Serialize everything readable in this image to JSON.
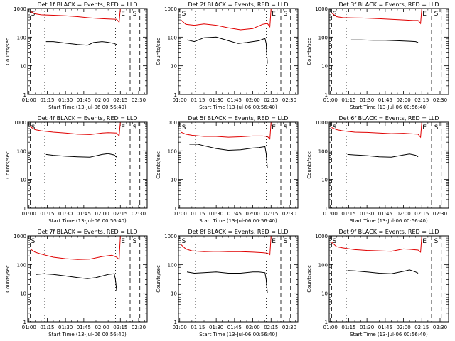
{
  "colors": {
    "events": "#000000",
    "lld": "#e00000",
    "axes": "#000000",
    "background": "#ffffff"
  },
  "chart_data": [
    {
      "type": "line",
      "title": "Det 1f BLACK = Events, RED = LLD",
      "xlabel": "Start Time (13-Jul-06 00:56:40)",
      "ylabel": "Counts/sec",
      "yscale": "log",
      "ylim": [
        1,
        1000
      ],
      "xlim": [
        "00:59",
        "02:37"
      ],
      "xticks": [
        "01:00",
        "01:15",
        "01:30",
        "01:45",
        "02:00",
        "02:15",
        "02:30"
      ],
      "yticks": [
        "1",
        "10",
        "100",
        "1000"
      ],
      "markers": [
        "E",
        "S"
      ],
      "series": [
        {
          "color": "#e00000",
          "x": [
            "01:01",
            "01:05",
            "01:10",
            "01:20",
            "01:30",
            "01:40",
            "01:50",
            "02:00",
            "02:05",
            "02:12",
            "02:14",
            "02:15",
            "02:16"
          ],
          "y": [
            800,
            650,
            600,
            580,
            560,
            520,
            470,
            440,
            430,
            420,
            330,
            1000,
            1100
          ]
        },
        {
          "color": "#000000",
          "x": [
            "01:14",
            "01:20",
            "01:30",
            "01:40",
            "01:48",
            "01:53",
            "02:00",
            "02:05",
            "02:10",
            "02:12"
          ],
          "y": [
            70,
            70,
            62,
            55,
            52,
            65,
            70,
            66,
            60,
            55
          ]
        }
      ]
    },
    {
      "type": "line",
      "title": "Det 2f BLACK = Events, RED = LLD",
      "xlabel": "Start Time (13-Jul-06 00:56:40)",
      "ylabel": "Counts/sec",
      "yscale": "log",
      "ylim": [
        1,
        1000
      ],
      "xlim": [
        "00:59",
        "02:37"
      ],
      "xticks": [
        "01:00",
        "01:15",
        "01:30",
        "01:45",
        "02:00",
        "02:15",
        "02:30"
      ],
      "yticks": [
        "1",
        "10",
        "100",
        "1000"
      ],
      "markers": [
        "E",
        "S"
      ],
      "series": [
        {
          "color": "#e00000",
          "x": [
            "01:01",
            "01:05",
            "01:12",
            "01:20",
            "01:30",
            "01:40",
            "01:50",
            "02:00",
            "02:08",
            "02:12",
            "02:14",
            "02:15",
            "02:16"
          ],
          "y": [
            400,
            280,
            260,
            290,
            260,
            210,
            180,
            200,
            280,
            300,
            230,
            1000,
            1100
          ]
        },
        {
          "color": "#000000",
          "x": [
            "01:06",
            "01:12",
            "01:20",
            "01:30",
            "01:40",
            "01:48",
            "01:55",
            "02:05",
            "02:10",
            "02:11",
            "02:12"
          ],
          "y": [
            80,
            70,
            95,
            100,
            75,
            60,
            65,
            75,
            90,
            60,
            12
          ]
        }
      ]
    },
    {
      "type": "line",
      "title": "Det 3f BLACK = Events, RED = LLD",
      "xlabel": "Start Time (13-Jul-06 00:56:40)",
      "ylabel": "Counts/sec",
      "yscale": "log",
      "ylim": [
        1,
        1000
      ],
      "xlim": [
        "00:59",
        "02:37"
      ],
      "xticks": [
        "01:00",
        "01:15",
        "01:30",
        "01:45",
        "02:00",
        "02:15",
        "02:30"
      ],
      "yticks": [
        "1",
        "10",
        "100",
        "1000"
      ],
      "markers": [
        "E",
        "S"
      ],
      "series": [
        {
          "color": "#e00000",
          "x": [
            "01:01",
            "01:05",
            "01:10",
            "01:20",
            "01:30",
            "01:40",
            "01:50",
            "02:00",
            "02:08",
            "02:12",
            "02:14",
            "02:15",
            "02:16"
          ],
          "y": [
            700,
            520,
            480,
            470,
            460,
            440,
            420,
            400,
            380,
            380,
            300,
            1000,
            1100
          ]
        },
        {
          "color": "#000000",
          "x": [
            "01:17",
            "01:25",
            "01:35",
            "01:45",
            "01:55",
            "02:05",
            "02:10",
            "02:12"
          ],
          "y": [
            80,
            80,
            78,
            78,
            75,
            72,
            70,
            65
          ]
        }
      ]
    },
    {
      "type": "line",
      "title": "Det 4f BLACK = Events, RED = LLD",
      "xlabel": "Start Time (13-Jul-06 00:56:40)",
      "ylabel": "Counts/sec",
      "yscale": "log",
      "ylim": [
        1,
        1000
      ],
      "xlim": [
        "00:59",
        "02:37"
      ],
      "xticks": [
        "01:00",
        "01:15",
        "01:30",
        "01:45",
        "02:00",
        "02:15",
        "02:30"
      ],
      "yticks": [
        "1",
        "10",
        "100",
        "1000"
      ],
      "markers": [
        "E",
        "S"
      ],
      "series": [
        {
          "color": "#e00000",
          "x": [
            "01:01",
            "01:05",
            "01:10",
            "01:20",
            "01:30",
            "01:40",
            "01:50",
            "02:00",
            "02:05",
            "02:12",
            "02:14",
            "02:15",
            "02:16"
          ],
          "y": [
            700,
            550,
            500,
            450,
            420,
            380,
            370,
            420,
            430,
            420,
            330,
            1000,
            1100
          ]
        },
        {
          "color": "#000000",
          "x": [
            "01:14",
            "01:20",
            "01:30",
            "01:40",
            "01:50",
            "02:00",
            "02:05",
            "02:10",
            "02:12"
          ],
          "y": [
            75,
            70,
            65,
            62,
            60,
            75,
            80,
            72,
            60
          ]
        }
      ]
    },
    {
      "type": "line",
      "title": "Det 5f BLACK = Events, RED = LLD",
      "xlabel": "Start Time (13-Jul-06 00:56:40)",
      "ylabel": "Counts/sec",
      "yscale": "log",
      "ylim": [
        1,
        1000
      ],
      "xlim": [
        "00:59",
        "02:37"
      ],
      "xticks": [
        "01:00",
        "01:15",
        "01:30",
        "01:45",
        "02:00",
        "02:15",
        "02:30"
      ],
      "yticks": [
        "1",
        "10",
        "100",
        "1000"
      ],
      "markers": [
        "E",
        "S"
      ],
      "series": [
        {
          "color": "#e00000",
          "x": [
            "01:01",
            "01:05",
            "01:10",
            "01:20",
            "01:30",
            "01:40",
            "01:50",
            "02:00",
            "02:08",
            "02:12",
            "02:14",
            "02:15",
            "02:16"
          ],
          "y": [
            450,
            380,
            350,
            320,
            320,
            300,
            310,
            330,
            330,
            320,
            260,
            1000,
            1100
          ]
        },
        {
          "color": "#000000",
          "x": [
            "01:08",
            "01:15",
            "01:20",
            "01:30",
            "01:40",
            "01:50",
            "02:00",
            "02:05",
            "02:10",
            "02:11",
            "02:12"
          ],
          "y": [
            170,
            170,
            150,
            120,
            105,
            110,
            125,
            130,
            140,
            80,
            25
          ]
        }
      ]
    },
    {
      "type": "line",
      "title": "Det 6f BLACK = Events, RED = LLD",
      "xlabel": "Start Time (13-Jul-06 00:56:40)",
      "ylabel": "Counts/sec",
      "yscale": "log",
      "ylim": [
        1,
        1000
      ],
      "xlim": [
        "00:59",
        "02:37"
      ],
      "xticks": [
        "01:00",
        "01:15",
        "01:30",
        "01:45",
        "02:00",
        "02:15",
        "02:30"
      ],
      "yticks": [
        "1",
        "10",
        "100",
        "1000"
      ],
      "markers": [
        "E",
        "S"
      ],
      "series": [
        {
          "color": "#e00000",
          "x": [
            "01:01",
            "01:05",
            "01:10",
            "01:20",
            "01:30",
            "01:40",
            "01:50",
            "02:00",
            "02:08",
            "02:12",
            "02:14",
            "02:15",
            "02:16"
          ],
          "y": [
            650,
            550,
            500,
            450,
            440,
            420,
            400,
            410,
            390,
            380,
            300,
            1000,
            1100
          ]
        },
        {
          "color": "#000000",
          "x": [
            "01:14",
            "01:20",
            "01:30",
            "01:40",
            "01:50",
            "02:00",
            "02:05",
            "02:10",
            "02:12"
          ],
          "y": [
            75,
            72,
            68,
            62,
            60,
            72,
            78,
            70,
            62
          ]
        }
      ]
    },
    {
      "type": "line",
      "title": "Det 7f BLACK = Events, RED = LLD",
      "xlabel": "Start Time (13-Jul-06 00:56:40)",
      "ylabel": "Counts/sec",
      "yscale": "log",
      "ylim": [
        1,
        1000
      ],
      "xlim": [
        "00:59",
        "02:37"
      ],
      "xticks": [
        "01:00",
        "01:15",
        "01:30",
        "01:45",
        "02:00",
        "02:15",
        "02:30"
      ],
      "yticks": [
        "1",
        "10",
        "100",
        "1000"
      ],
      "markers": [
        "E",
        "S"
      ],
      "series": [
        {
          "color": "#e00000",
          "x": [
            "01:01",
            "01:05",
            "01:10",
            "01:20",
            "01:30",
            "01:40",
            "01:50",
            "02:00",
            "02:08",
            "02:12",
            "02:14",
            "02:15",
            "02:16"
          ],
          "y": [
            350,
            270,
            230,
            180,
            160,
            150,
            155,
            190,
            210,
            180,
            150,
            1000,
            1100
          ]
        },
        {
          "color": "#000000",
          "x": [
            "01:06",
            "01:12",
            "01:20",
            "01:30",
            "01:40",
            "01:48",
            "01:55",
            "02:05",
            "02:10",
            "02:11",
            "02:12"
          ],
          "y": [
            45,
            48,
            45,
            40,
            35,
            32,
            35,
            45,
            48,
            30,
            12
          ]
        }
      ]
    },
    {
      "type": "line",
      "title": "Det 8f BLACK = Events, RED = LLD",
      "xlabel": "Start Time (13-Jul-06 00:56:40)",
      "ylabel": "Counts/sec",
      "yscale": "log",
      "ylim": [
        1,
        1000
      ],
      "xlim": [
        "00:59",
        "02:37"
      ],
      "xticks": [
        "01:00",
        "01:15",
        "01:30",
        "01:45",
        "02:00",
        "02:15",
        "02:30"
      ],
      "yticks": [
        "1",
        "10",
        "100",
        "1000"
      ],
      "markers": [
        "E",
        "S"
      ],
      "series": [
        {
          "color": "#e00000",
          "x": [
            "01:01",
            "01:05",
            "01:10",
            "01:20",
            "01:30",
            "01:40",
            "01:50",
            "02:00",
            "02:08",
            "02:12",
            "02:14",
            "02:15",
            "02:16"
          ],
          "y": [
            500,
            350,
            300,
            280,
            290,
            280,
            280,
            270,
            260,
            250,
            220,
            1000,
            1100
          ]
        },
        {
          "color": "#000000",
          "x": [
            "01:06",
            "01:12",
            "01:20",
            "01:30",
            "01:40",
            "01:50",
            "02:00",
            "02:05",
            "02:10",
            "02:11",
            "02:12"
          ],
          "y": [
            55,
            50,
            52,
            55,
            50,
            50,
            55,
            55,
            52,
            30,
            10
          ]
        }
      ]
    },
    {
      "type": "line",
      "title": "Det 9f BLACK = Events, RED = LLD",
      "xlabel": "Start Time (13-Jul-06 00:56:40)",
      "ylabel": "Counts/sec",
      "yscale": "log",
      "ylim": [
        1,
        1000
      ],
      "xlim": [
        "00:59",
        "02:37"
      ],
      "xticks": [
        "01:00",
        "01:15",
        "01:30",
        "01:45",
        "02:00",
        "02:15",
        "02:30"
      ],
      "yticks": [
        "1",
        "10",
        "100",
        "1000"
      ],
      "markers": [
        "E",
        "S"
      ],
      "series": [
        {
          "color": "#e00000",
          "x": [
            "01:01",
            "01:05",
            "01:10",
            "01:20",
            "01:30",
            "01:40",
            "01:50",
            "02:00",
            "02:05",
            "02:12",
            "02:14",
            "02:15",
            "02:16"
          ],
          "y": [
            600,
            420,
            380,
            330,
            310,
            300,
            290,
            350,
            340,
            320,
            270,
            1000,
            1100
          ]
        },
        {
          "color": "#000000",
          "x": [
            "01:14",
            "01:20",
            "01:30",
            "01:40",
            "01:50",
            "02:00",
            "02:05",
            "02:10",
            "02:12"
          ],
          "y": [
            62,
            60,
            55,
            50,
            48,
            58,
            65,
            55,
            50
          ]
        }
      ]
    }
  ]
}
